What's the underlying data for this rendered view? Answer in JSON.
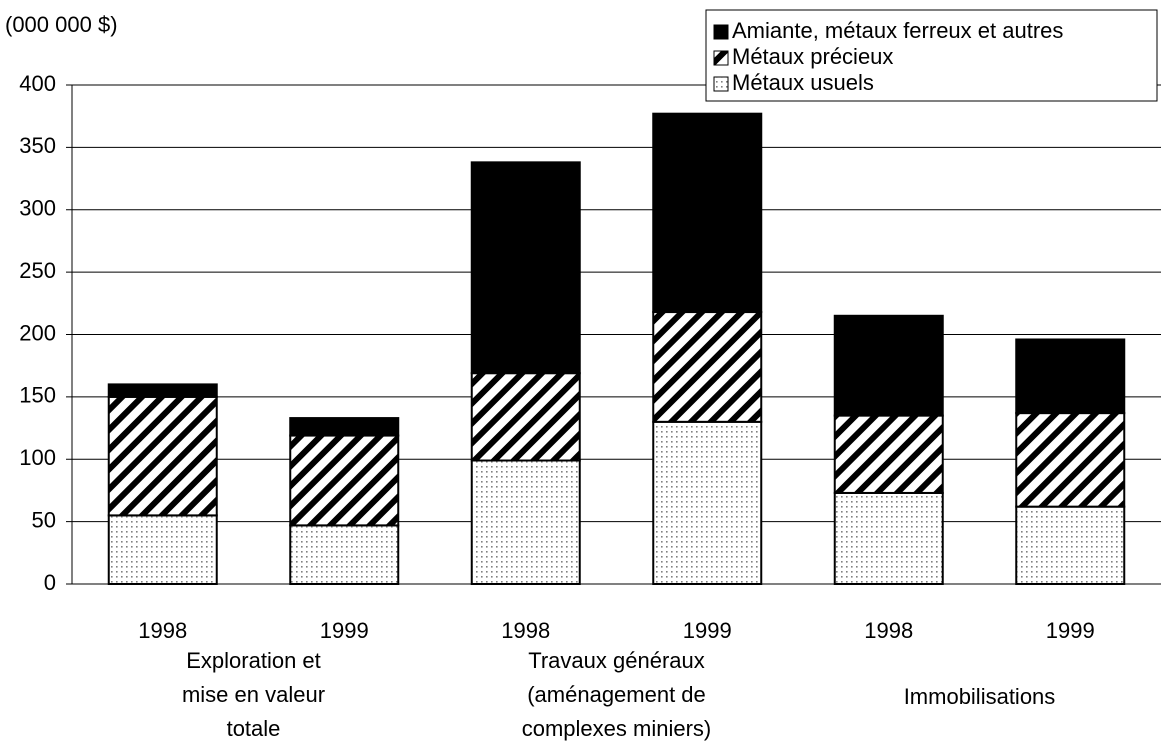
{
  "chart_data": {
    "type": "stacked_bar",
    "y_unit_label": "(000 000 $)",
    "categories": [
      "1998",
      "1999",
      "1998",
      "1999",
      "1998",
      "1999"
    ],
    "groups": [
      [
        "Exploration et",
        "mise en valeur",
        "totale"
      ],
      [
        "Travaux généraux",
        "(aménagement de",
        "complexes miniers)"
      ],
      [
        "Immobilisations"
      ]
    ],
    "series": [
      {
        "name": "Métaux usuels",
        "color": "#808080",
        "pattern": "dots",
        "values": [
          55,
          47,
          99,
          130,
          73,
          62
        ]
      },
      {
        "name": "Métaux précieux",
        "color": "#000000",
        "pattern": "stripes",
        "values": [
          95,
          72,
          70,
          88,
          62,
          75
        ]
      },
      {
        "name": "Amiante, métaux ferreux et autres",
        "color": "#000000",
        "pattern": "solid",
        "values": [
          10,
          14,
          169,
          159,
          80,
          59
        ]
      }
    ],
    "ylim": [
      0,
      400
    ],
    "yticks": [
      0,
      50,
      100,
      150,
      200,
      250,
      300,
      350,
      400
    ],
    "grid": true,
    "legend": "top-right"
  }
}
